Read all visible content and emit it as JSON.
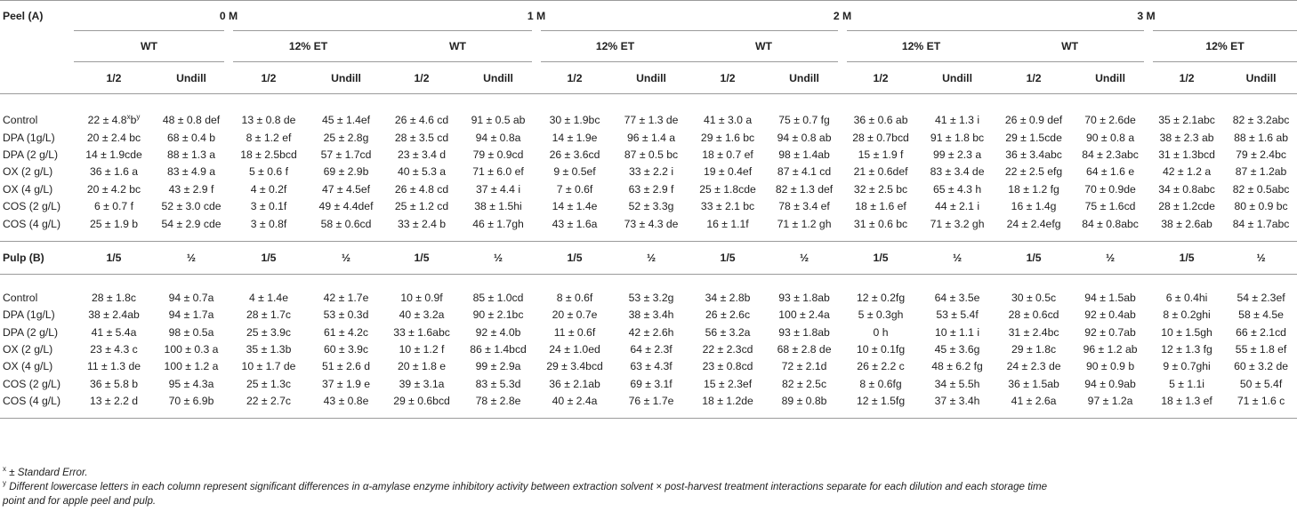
{
  "peel": {
    "section_label": "Peel (A)",
    "months": [
      "0 M",
      "1 M",
      "2 M",
      "3 M"
    ],
    "groups": [
      "WT",
      "12% ET"
    ],
    "dilutions": [
      "1/2",
      "Undill"
    ],
    "rows": [
      {
        "label": "Control",
        "values": [
          "22 ± 4.8",
          "48 ± 0.8 def",
          "13 ± 0.8 de",
          "45 ± 1.4ef",
          "26 ± 4.6 cd",
          "91 ± 0.5 ab",
          "30 ± 1.9bc",
          "77 ± 1.3 de",
          "41 ± 3.0 a",
          "75 ± 0.7 fg",
          "36 ± 0.6 ab",
          "41 ± 1.3 i",
          "26 ± 0.9 def",
          "70 ± 2.6de",
          "35 ± 2.1abc",
          "82 ± 3.2abc"
        ]
      },
      {
        "label": "DPA (1g/L)",
        "values": [
          "20 ± 2.4 bc",
          "68 ± 0.4 b",
          "8 ± 1.2 ef",
          "25 ± 2.8g",
          "28 ± 3.5 cd",
          "94 ± 0.8a",
          "14 ± 1.9e",
          "96 ± 1.4 a",
          "29 ± 1.6 bc",
          "94 ± 0.8 ab",
          "28 ± 0.7bcd",
          "91 ± 1.8 bc",
          "29 ± 1.5cde",
          "90 ± 0.8 a",
          "38 ± 2.3 ab",
          "88 ± 1.6 ab"
        ]
      },
      {
        "label": "DPA (2 g/L)",
        "values": [
          "14 ± 1.9cde",
          "88 ± 1.3 a",
          "18 ± 2.5bcd",
          "57 ± 1.7cd",
          "23 ± 3.4 d",
          "79 ± 0.9cd",
          "26 ± 3.6cd",
          "87 ± 0.5 bc",
          "18 ± 0.7 ef",
          "98 ± 1.4ab",
          "15 ± 1.9 f",
          "99 ± 2.3 a",
          "36 ± 3.4abc",
          "84 ± 2.3abc",
          "31 ± 1.3bcd",
          "79 ± 2.4bc"
        ]
      },
      {
        "label": "OX (2 g/L)",
        "values": [
          "36 ± 1.6 a",
          "83 ± 4.9 a",
          "5 ± 0.6 f",
          "69 ± 2.9b",
          "40 ± 5.3 a",
          "71 ± 6.0 ef",
          "9 ± 0.5ef",
          "33 ± 2.2 i",
          "19 ± 0.4ef",
          "87 ± 4.1 cd",
          "21 ± 0.6def",
          "83 ± 3.4 de",
          "22 ± 2.5 efg",
          "64 ± 1.6 e",
          "42 ± 1.2 a",
          "87 ± 1.2ab"
        ]
      },
      {
        "label": "OX (4 g/L)",
        "values": [
          "20 ± 4.2 bc",
          "43 ± 2.9 f",
          "4 ± 0.2f",
          "47 ± 4.5ef",
          "26 ± 4.8 cd",
          "37 ± 4.4 i",
          "7 ± 0.6f",
          "63 ± 2.9 f",
          "25 ± 1.8cde",
          "82 ± 1.3 def",
          "32 ± 2.5 bc",
          "65 ± 4.3 h",
          "18 ± 1.2 fg",
          "70 ± 0.9de",
          "34 ± 0.8abc",
          "82 ± 0.5abc"
        ]
      },
      {
        "label": "COS (2 g/L)",
        "values": [
          "6 ± 0.7 f",
          "52 ± 3.0 cde",
          "3 ± 0.1f",
          "49 ± 4.4def",
          "25 ± 1.2 cd",
          "38 ± 1.5hi",
          "14 ± 1.4e",
          "52 ± 3.3g",
          "33 ± 2.1 bc",
          "78 ± 3.4 ef",
          "18 ± 1.6 ef",
          "44 ± 2.1 i",
          "16 ± 1.4g",
          "75 ± 1.6cd",
          "28 ± 1.2cde",
          "80 ± 0.9 bc"
        ]
      },
      {
        "label": "COS (4 g/L)",
        "values": [
          "25 ± 1.9 b",
          "54 ± 2.9 cde",
          "3 ± 0.8f",
          "58 ± 0.6cd",
          "33 ± 2.4 b",
          "46 ± 1.7gh",
          "43 ± 1.6a",
          "73 ± 4.3 de",
          "16 ± 1.1f",
          "71 ± 1.2 gh",
          "31 ± 0.6 bc",
          "71 ± 3.2 gh",
          "24 ± 2.4efg",
          "84 ± 0.8abc",
          "38 ± 2.6ab",
          "84 ± 1.7abc"
        ]
      }
    ]
  },
  "pulp": {
    "section_label": "Pulp (B)",
    "dilutions": [
      "1/5",
      "½"
    ],
    "rows": [
      {
        "label": "Control",
        "values": [
          "28 ± 1.8c",
          "94 ± 0.7a",
          "4 ± 1.4e",
          "42 ± 1.7e",
          "10 ± 0.9f",
          "85 ± 1.0cd",
          "8 ± 0.6f",
          "53 ± 3.2g",
          "34 ± 2.8b",
          "93 ± 1.8ab",
          "12 ± 0.2fg",
          "64 ± 3.5e",
          "30 ± 0.5c",
          "94 ± 1.5ab",
          "6 ± 0.4hi",
          "54 ± 2.3ef"
        ]
      },
      {
        "label": "DPA (1g/L)",
        "values": [
          "38 ± 2.4ab",
          "94 ± 1.7a",
          "28 ± 1.7c",
          "53 ± 0.3d",
          "40 ± 3.2a",
          "90 ± 2.1bc",
          "20 ± 0.7e",
          "38 ± 3.4h",
          "26 ± 2.6c",
          "100 ± 2.4a",
          "5 ± 0.3gh",
          "53 ± 5.4f",
          "28 ± 0.6cd",
          "92 ± 0.4ab",
          "8 ± 0.2ghi",
          "58 ± 4.5e"
        ]
      },
      {
        "label": "DPA (2 g/L)",
        "values": [
          "41 ± 5.4a",
          "98 ± 0.5a",
          "25 ± 3.9c",
          "61 ± 4.2c",
          "33 ± 1.6abc",
          "92 ± 4.0b",
          "11 ± 0.6f",
          "42 ± 2.6h",
          "56 ± 3.2a",
          "93 ± 1.8ab",
          "0 h",
          "10 ± 1.1 i",
          "31 ± 2.4bc",
          "92 ± 0.7ab",
          "10 ± 1.5gh",
          "66 ± 2.1cd"
        ]
      },
      {
        "label": "OX (2 g/L)",
        "values": [
          "23 ± 4.3 c",
          "100 ± 0.3 a",
          "35 ± 1.3b",
          "60 ± 3.9c",
          "10 ± 1.2 f",
          "86 ± 1.4bcd",
          "24 ± 1.0ed",
          "64 ± 2.3f",
          "22 ± 2.3cd",
          "68 ± 2.8 de",
          "10 ± 0.1fg",
          "45 ± 3.6g",
          "29 ± 1.8c",
          "96 ± 1.2 ab",
          "12 ± 1.3 fg",
          "55 ± 1.8 ef"
        ]
      },
      {
        "label": "OX (4 g/L)",
        "values": [
          "11 ± 1.3 de",
          "100 ± 1.2 a",
          "10 ± 1.7 de",
          "51 ± 2.6 d",
          "20 ± 1.8 e",
          "99 ± 2.9a",
          "29 ± 3.4bcd",
          "63 ± 4.3f",
          "23 ± 0.8cd",
          "72 ± 2.1d",
          "26 ± 2.2 c",
          "48 ± 6.2 fg",
          "24 ± 2.3 de",
          "90 ± 0.9 b",
          "9 ± 0.7ghi",
          "60 ± 3.2 de"
        ]
      },
      {
        "label": "COS (2 g/L)",
        "values": [
          "36 ± 5.8 b",
          "95 ± 4.3a",
          "25 ± 1.3c",
          "37 ± 1.9 e",
          "39 ± 3.1a",
          "83 ± 5.3d",
          "36 ± 2.1ab",
          "69 ± 3.1f",
          "15 ± 2.3ef",
          "82 ± 2.5c",
          "8 ± 0.6fg",
          "34 ± 5.5h",
          "36 ± 1.5ab",
          "94 ± 0.9ab",
          "5 ± 1.1i",
          "50 ± 5.4f"
        ]
      },
      {
        "label": "COS (4 g/L)",
        "values": [
          "13 ± 2.2 d",
          "70 ± 6.9b",
          "22 ± 2.7c",
          "43 ± 0.8e",
          "29 ± 0.6bcd",
          "78 ± 2.8e",
          "40 ± 2.4a",
          "76 ± 1.7e",
          "18 ± 1.2de",
          "89 ± 0.8b",
          "12 ± 1.5fg",
          "37 ± 3.4h",
          "41 ± 2.6a",
          "97 ± 1.2a",
          "18 ± 1.3 ef",
          "71 ± 1.6 c"
        ]
      }
    ]
  },
  "first_cell_marks": {
    "sup_x": "x",
    "letter": "b",
    "sup_y": "y"
  },
  "footnotes": [
    {
      "mark": "x",
      "text": " ± Standard Error."
    },
    {
      "mark": "y",
      "text": " Different lowercase letters in each column represent significant differences in α-amylase enzyme inhibitory activity between extraction solvent × post-harvest treatment interactions separate for each dilution and each storage time"
    },
    {
      "mark": "",
      "text": "point and for apple peel and pulp."
    }
  ]
}
